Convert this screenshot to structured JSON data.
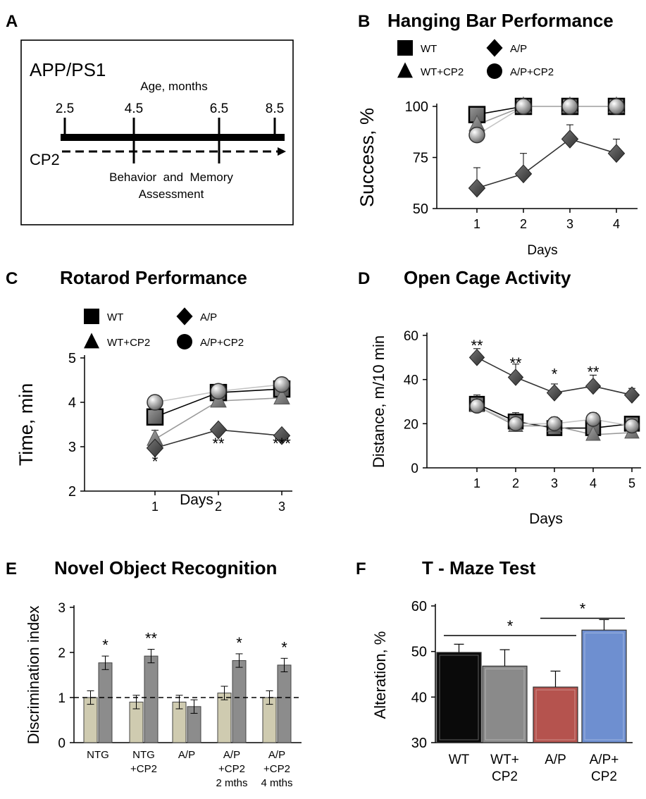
{
  "colors": {
    "black": "#000000",
    "grey_marker": "#8f8f8f",
    "dark_marker": "#4a4a4a",
    "bar_beige": "#cfcbb0",
    "bar_grey": "#8c8c8c",
    "t_wt": "#0a0a0a",
    "t_wtcp2": "#8a8a8a",
    "t_ap": "#b5534e",
    "t_apcp2": "#6e8fd0"
  },
  "panel_a": {
    "letter": "A",
    "title": "APP/PS1",
    "age_label": "Age, months",
    "ages": [
      "2.5",
      "4.5",
      "6.5",
      "8.5"
    ],
    "treatment": "CP2",
    "assessment_line1": "Behavior  and  Memory",
    "assessment_line2": "Assessment"
  },
  "chart_data": [
    {
      "id": "B",
      "letter": "B",
      "type": "line",
      "title": "Hanging Bar Performance",
      "xlabel": "Days",
      "ylabel": "Success, %",
      "x": [
        1,
        2,
        3,
        4
      ],
      "ylim": [
        50,
        100
      ],
      "yticks": [
        50,
        75,
        100
      ],
      "legend": [
        "WT",
        "A/P",
        "WT+CP2",
        "A/P+CP2"
      ],
      "series": [
        {
          "name": "WT",
          "marker": "square",
          "values": [
            96,
            100,
            100,
            100
          ],
          "err": [
            0,
            0,
            0,
            0
          ]
        },
        {
          "name": "WT+CP2",
          "marker": "triangle",
          "values": [
            91,
            100,
            100,
            100
          ],
          "err": [
            0,
            0,
            0,
            0
          ]
        },
        {
          "name": "A/P+CP2",
          "marker": "sphere",
          "values": [
            86,
            100,
            100,
            100
          ],
          "err": [
            0,
            0,
            0,
            0
          ]
        },
        {
          "name": "A/P",
          "marker": "diamond",
          "values": [
            60,
            67,
            84,
            77
          ],
          "err": [
            10,
            10,
            7,
            7
          ]
        }
      ]
    },
    {
      "id": "C",
      "letter": "C",
      "type": "line",
      "title": "Rotarod Performance",
      "xlabel": "Days",
      "ylabel": "Time, min",
      "x": [
        1,
        2,
        3
      ],
      "ylim": [
        2,
        5
      ],
      "yticks": [
        2,
        3,
        4,
        5
      ],
      "legend": [
        "WT",
        "A/P",
        "WT+CP2",
        "A/P+CP2"
      ],
      "annotations": [
        {
          "x": 1,
          "y": 2.55,
          "text": "*"
        },
        {
          "x": 2,
          "y": 2.95,
          "text": "**"
        },
        {
          "x": 3,
          "y": 2.95,
          "text": "***"
        }
      ],
      "series": [
        {
          "name": "WT",
          "marker": "square",
          "values": [
            3.67,
            4.22,
            4.3
          ],
          "err": [
            0.1,
            0.1,
            0.1
          ]
        },
        {
          "name": "WT+CP2",
          "marker": "triangle",
          "values": [
            3.17,
            4.03,
            4.1
          ],
          "err": [
            0.2,
            0.1,
            0.1
          ]
        },
        {
          "name": "A/P+CP2",
          "marker": "sphere",
          "values": [
            4.0,
            4.25,
            4.4
          ],
          "err": [
            0.1,
            0.1,
            0.1
          ]
        },
        {
          "name": "A/P",
          "marker": "diamond",
          "values": [
            2.97,
            3.38,
            3.25
          ],
          "err": [
            0.1,
            0.1,
            0.05
          ]
        }
      ]
    },
    {
      "id": "D",
      "letter": "D",
      "type": "line",
      "title": "Open Cage Activity",
      "xlabel": "Days",
      "ylabel": "Distance, m/10 min",
      "x": [
        1,
        2,
        3,
        4,
        5
      ],
      "ylim": [
        0,
        60
      ],
      "yticks": [
        0,
        20,
        40,
        60
      ],
      "annotations": [
        {
          "x": 1,
          "y": 53,
          "text": "**"
        },
        {
          "x": 2,
          "y": 45,
          "text": "**"
        },
        {
          "x": 3,
          "y": 40,
          "text": "*"
        },
        {
          "x": 4,
          "y": 41,
          "text": "**"
        }
      ],
      "series": [
        {
          "name": "WT",
          "marker": "square",
          "values": [
            29,
            21,
            18,
            18,
            20
          ],
          "err": [
            4,
            4,
            3,
            3,
            3
          ]
        },
        {
          "name": "WT+CP2",
          "marker": "triangle",
          "values": [
            28,
            19,
            19,
            15,
            16
          ],
          "err": [
            3,
            3,
            3,
            3,
            3
          ]
        },
        {
          "name": "A/P+CP2",
          "marker": "sphere",
          "values": [
            28,
            20,
            20,
            22,
            19
          ],
          "err": [
            3,
            3,
            3,
            3,
            3
          ]
        },
        {
          "name": "A/P",
          "marker": "diamond",
          "values": [
            50,
            41,
            34,
            37,
            33
          ],
          "err": [
            4,
            6,
            4,
            5,
            3
          ]
        }
      ]
    },
    {
      "id": "E",
      "letter": "E",
      "type": "bar",
      "title": "Novel Object Recognition",
      "xlabel": "",
      "ylabel": "Discrimination index",
      "categories": [
        [
          "NTG"
        ],
        [
          "NTG",
          "+CP2"
        ],
        [
          "A/P"
        ],
        [
          "A/P",
          "+CP2",
          "2 mths"
        ],
        [
          "A/P",
          "+CP2",
          "4 mths"
        ]
      ],
      "ylim": [
        0,
        3
      ],
      "yticks": [
        0,
        1,
        2,
        3
      ],
      "reference_line": 1,
      "series": [
        {
          "values": [
            1.0,
            0.9,
            0.9,
            1.1,
            1.0
          ],
          "err": [
            0.15,
            0.15,
            0.15,
            0.15,
            0.15
          ]
        },
        {
          "values": [
            1.77,
            1.92,
            0.8,
            1.82,
            1.72
          ],
          "err": [
            0.15,
            0.15,
            0.15,
            0.15,
            0.15
          ]
        }
      ],
      "annotations": [
        "*",
        "**",
        "",
        "*",
        "*"
      ]
    },
    {
      "id": "F",
      "letter": "F",
      "type": "bar",
      "title": "T - Maze Test",
      "xlabel": "",
      "ylabel": "Alteration, %",
      "categories": [
        [
          "WT"
        ],
        [
          "WT+",
          "CP2"
        ],
        [
          "A/P"
        ],
        [
          "A/P+",
          "CP2"
        ]
      ],
      "ylim": [
        30,
        60
      ],
      "yticks": [
        30,
        40,
        50,
        60
      ],
      "series": [
        {
          "values": [
            49.8,
            46.8,
            42.2,
            54.7
          ],
          "err": [
            1.8,
            3.6,
            3.5,
            2.3
          ]
        }
      ],
      "brackets": [
        {
          "from": 0,
          "to": 2,
          "y": 53.5,
          "text": "*"
        },
        {
          "from": 2,
          "to": 3,
          "y": 57.3,
          "text": "*"
        }
      ]
    }
  ]
}
